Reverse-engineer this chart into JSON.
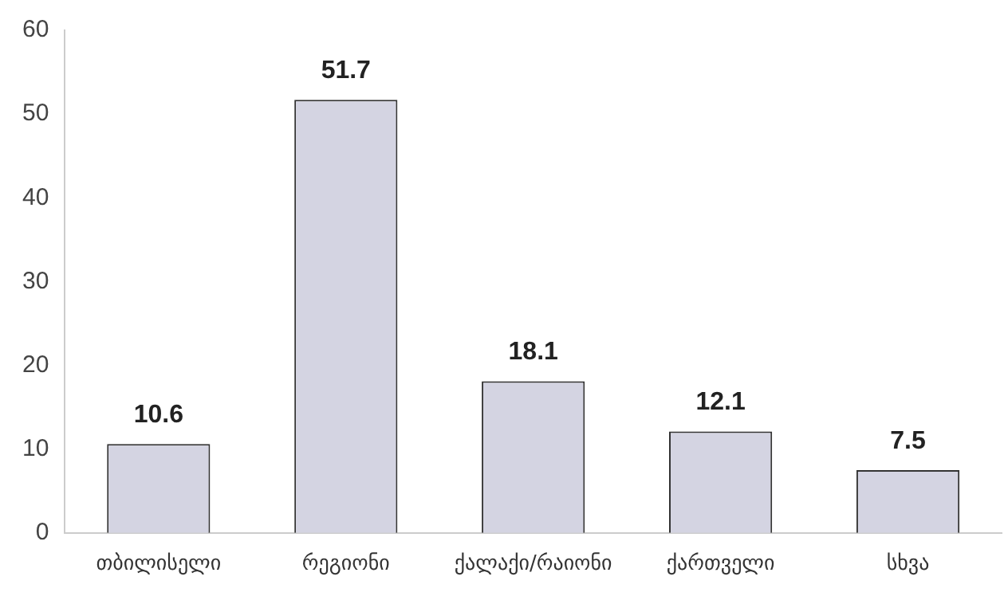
{
  "chart_data": {
    "type": "bar",
    "categories": [
      "თბილისელი",
      "რეგიონი",
      "ქალაქი/რაიონი",
      "ქართველი",
      "სხვა"
    ],
    "values": [
      10.6,
      51.7,
      18.1,
      12.1,
      7.5
    ],
    "color": "#d4d4e2",
    "ylim": [
      0,
      60
    ],
    "yticks": [
      0,
      10,
      20,
      30,
      40,
      50,
      60
    ],
    "grid": false,
    "data_labels": true
  }
}
